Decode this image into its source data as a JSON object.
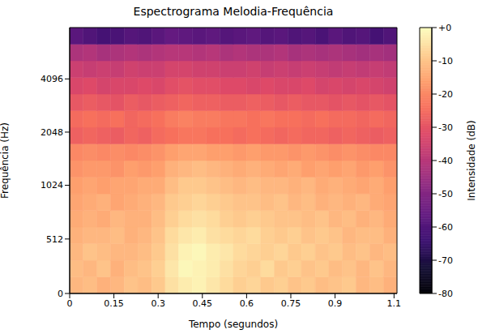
{
  "chart_data": {
    "type": "heatmap",
    "title": "Espectrograma Melodia-Frequência",
    "x_label": "Tempo (segundos)",
    "y_label": "Frequência (Hz)",
    "log": "y",
    "xlim": [
      0,
      1.11
    ],
    "xticks": [
      0,
      0.15,
      0.3,
      0.45,
      0.6,
      0.75,
      0.9,
      1.1
    ],
    "ylim": [
      0,
      8000
    ],
    "yticks": [
      0,
      512,
      1024,
      2048,
      4096
    ],
    "heatmap": {
      "time_edges": [
        0,
        0.046,
        0.093,
        0.139,
        0.185,
        0.231,
        0.278,
        0.324,
        0.37,
        0.416,
        0.463,
        0.509,
        0.555,
        0.601,
        0.648,
        0.694,
        0.74,
        0.786,
        0.833,
        0.879,
        0.925,
        0.971,
        1.018,
        1.064,
        1.11
      ],
      "frequency_edges": [
        0,
        156,
        312,
        469,
        625,
        781,
        938,
        1139,
        1414,
        1756,
        2181,
        2708,
        3364,
        4177,
        5187,
        6441,
        8000
      ],
      "values": [
        [
          -12,
          -11,
          -13,
          -12,
          -10,
          -11,
          -9,
          -5,
          -3,
          -2,
          -4,
          -6,
          -8,
          -7,
          -9,
          -8,
          -10,
          -9,
          -11,
          -10,
          -9,
          -12,
          -11,
          -13
        ],
        [
          -11,
          -12,
          -10,
          -13,
          -11,
          -10,
          -8,
          -4,
          -1,
          -2,
          -3,
          -5,
          -7,
          -8,
          -6,
          -9,
          -8,
          -10,
          -9,
          -11,
          -10,
          -12,
          -10,
          -12
        ],
        [
          -12,
          -10,
          -11,
          -12,
          -12,
          -11,
          -9,
          -5,
          -2,
          -1,
          -3,
          -4,
          -6,
          -7,
          -8,
          -7,
          -9,
          -8,
          -10,
          -9,
          -11,
          -10,
          -12,
          -11
        ],
        [
          -13,
          -12,
          -12,
          -11,
          -13,
          -12,
          -10,
          -6,
          -4,
          -3,
          -5,
          -6,
          -7,
          -6,
          -8,
          -9,
          -8,
          -10,
          -9,
          -10,
          -12,
          -11,
          -11,
          -13
        ],
        [
          -14,
          -13,
          -14,
          -12,
          -13,
          -13,
          -11,
          -8,
          -6,
          -5,
          -6,
          -8,
          -9,
          -8,
          -9,
          -10,
          -10,
          -11,
          -10,
          -12,
          -11,
          -13,
          -12,
          -14
        ],
        [
          -15,
          -14,
          -13,
          -15,
          -14,
          -13,
          -12,
          -9,
          -8,
          -7,
          -8,
          -9,
          -10,
          -10,
          -11,
          -10,
          -12,
          -11,
          -13,
          -12,
          -13,
          -12,
          -14,
          -15
        ],
        [
          -16,
          -15,
          -16,
          -15,
          -15,
          -14,
          -14,
          -11,
          -9,
          -9,
          -10,
          -11,
          -12,
          -11,
          -12,
          -12,
          -13,
          -12,
          -14,
          -13,
          -14,
          -15,
          -14,
          -16
        ],
        [
          -18,
          -17,
          -17,
          -18,
          -16,
          -17,
          -16,
          -13,
          -12,
          -11,
          -12,
          -13,
          -14,
          -13,
          -14,
          -15,
          -14,
          -16,
          -15,
          -16,
          -15,
          -17,
          -16,
          -18
        ],
        [
          -20,
          -19,
          -20,
          -19,
          -20,
          -19,
          -18,
          -16,
          -15,
          -15,
          -16,
          -16,
          -17,
          -16,
          -17,
          -17,
          -18,
          -17,
          -18,
          -19,
          -18,
          -19,
          -20,
          -20
        ],
        [
          -27,
          -26,
          -27,
          -28,
          -26,
          -27,
          -25,
          -24,
          -23,
          -23,
          -24,
          -24,
          -25,
          -24,
          -25,
          -26,
          -25,
          -26,
          -26,
          -27,
          -26,
          -27,
          -28,
          -27
        ],
        [
          -25,
          -24,
          -25,
          -24,
          -26,
          -25,
          -24,
          -22,
          -21,
          -22,
          -22,
          -23,
          -23,
          -24,
          -23,
          -24,
          -24,
          -25,
          -24,
          -25,
          -25,
          -26,
          -25,
          -26
        ],
        [
          -29,
          -28,
          -29,
          -30,
          -28,
          -29,
          -28,
          -27,
          -26,
          -27,
          -27,
          -28,
          -28,
          -27,
          -28,
          -29,
          -28,
          -29,
          -29,
          -30,
          -29,
          -30,
          -29,
          -30
        ],
        [
          -33,
          -32,
          -34,
          -33,
          -33,
          -32,
          -33,
          -31,
          -30,
          -31,
          -31,
          -32,
          -32,
          -33,
          -32,
          -33,
          -33,
          -32,
          -34,
          -33,
          -34,
          -33,
          -34,
          -35
        ],
        [
          -36,
          -37,
          -36,
          -37,
          -35,
          -36,
          -36,
          -34,
          -34,
          -35,
          -35,
          -36,
          -36,
          -35,
          -37,
          -36,
          -37,
          -36,
          -37,
          -38,
          -37,
          -38,
          -37,
          -38
        ],
        [
          -42,
          -41,
          -43,
          -42,
          -41,
          -42,
          -41,
          -40,
          -40,
          -41,
          -40,
          -42,
          -41,
          -42,
          -42,
          -41,
          -43,
          -42,
          -43,
          -42,
          -43,
          -44,
          -43,
          -44
        ],
        [
          -58,
          -60,
          -62,
          -61,
          -59,
          -60,
          -58,
          -56,
          -57,
          -58,
          -57,
          -59,
          -58,
          -57,
          -59,
          -58,
          -60,
          -59,
          -61,
          -58,
          -60,
          -59,
          -62,
          -60
        ]
      ]
    },
    "colorbar": {
      "label": "Intensidade (dB)",
      "range": [
        -80,
        0
      ],
      "ticks": [
        {
          "value": 0,
          "label": "+0"
        },
        -10,
        -20,
        -30,
        -40,
        -50,
        -60,
        -70,
        -80
      ]
    }
  }
}
